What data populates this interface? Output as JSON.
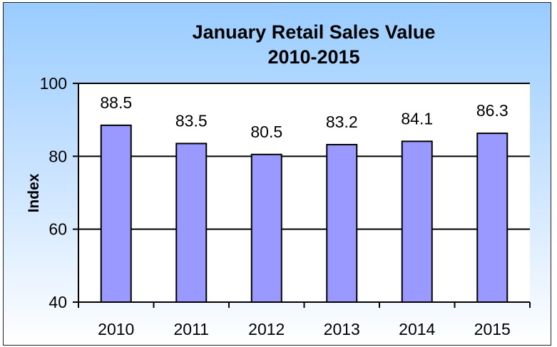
{
  "chart_data": {
    "type": "bar",
    "title": "January Retail Sales Value",
    "subtitle": "2010-2015",
    "xlabel": "",
    "ylabel": "Index",
    "categories": [
      "2010",
      "2011",
      "2012",
      "2013",
      "2014",
      "2015"
    ],
    "values": [
      88.5,
      83.5,
      80.5,
      83.2,
      84.1,
      86.3
    ],
    "data_labels": [
      "88.5",
      "83.5",
      "80.5",
      "83.2",
      "84.1",
      "86.3"
    ],
    "ylim": [
      40,
      100
    ],
    "yticks": [
      40,
      60,
      80,
      100
    ],
    "ytick_labels": [
      "40",
      "60",
      "80",
      "100"
    ],
    "grid": true,
    "legend": "none",
    "colors": {
      "bar": "#9999ff",
      "bar_border": "#000000",
      "plot_bg": "#ffffff"
    }
  }
}
